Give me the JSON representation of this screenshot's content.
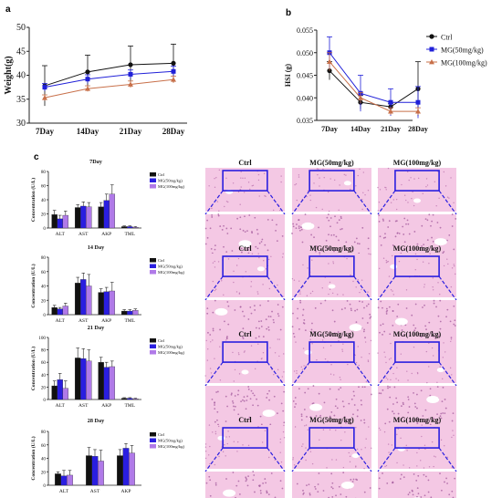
{
  "panel_labels": {
    "a": "a",
    "b": "b",
    "c": "c"
  },
  "colors": {
    "ctrl": "#111111",
    "mg50": "#2020d8",
    "mg100": "#c8704a",
    "mg100_bar": "#b07ae8",
    "mg50_bar": "#2a1ee0",
    "tissue_bg": "#f4c8e4",
    "tissue_vein": "#ffffff",
    "box": "#2a1ee0"
  },
  "histology": {
    "column_titles": [
      "Ctrl",
      "MG(50mg/kg)",
      "MG(100mg/kg)"
    ],
    "rows": 4
  },
  "chart_data": [
    {
      "type": "line",
      "id": "weight",
      "title": "",
      "xlabel": "",
      "ylabel": "Weight(g)",
      "categories": [
        "7Day",
        "14Day",
        "21Day",
        "28Day"
      ],
      "ylim": [
        30,
        50
      ],
      "yticks": [
        30,
        35,
        40,
        45,
        50
      ],
      "series": [
        {
          "name": "",
          "color_key": "ctrl",
          "marker": "circle",
          "values": [
            37.8,
            40.7,
            42.2,
            42.5
          ],
          "err": [
            4.2,
            3.5,
            3.9,
            4.0
          ]
        },
        {
          "name": "",
          "color_key": "mg50",
          "marker": "square",
          "values": [
            37.5,
            39.2,
            40.2,
            40.8
          ],
          "err": [
            0.8,
            0.9,
            0.9,
            1.1
          ]
        },
        {
          "name": "",
          "color_key": "mg100",
          "marker": "triangle",
          "values": [
            35.3,
            37.2,
            38.1,
            39.1
          ],
          "err": [
            0.6,
            0.6,
            0.7,
            0.7
          ]
        }
      ]
    },
    {
      "type": "line",
      "id": "hsi",
      "title": "",
      "xlabel": "",
      "ylabel": "HSI (g)",
      "categories": [
        "7Day",
        "14Day",
        "21Day",
        "28Day"
      ],
      "ylim": [
        0.035,
        0.055
      ],
      "yticks": [
        "0.035",
        "0.040",
        "0.045",
        "0.050",
        "0.055"
      ],
      "ytick_values": [
        0.035,
        0.04,
        0.045,
        0.05,
        0.055
      ],
      "legend_position": "right",
      "series": [
        {
          "name": "Ctrl",
          "color_key": "ctrl",
          "marker": "circle",
          "values": [
            0.046,
            0.039,
            0.038,
            0.042
          ],
          "err": [
            0.002,
            0.0015,
            0.0008,
            0.006
          ]
        },
        {
          "name": "MG(50mg/kg)",
          "color_key": "mg50",
          "marker": "square",
          "values": [
            0.05,
            0.041,
            0.039,
            0.039
          ],
          "err": [
            0.0035,
            0.004,
            0.003,
            0.0035
          ]
        },
        {
          "name": "MG(100mg/kg)",
          "color_key": "mg100",
          "marker": "triangle",
          "values": [
            0.048,
            0.04,
            0.037,
            0.037
          ],
          "err": [
            0.002,
            0.0012,
            0.0008,
            0.0008
          ]
        }
      ]
    },
    {
      "type": "bar",
      "id": "day7",
      "title": "7Day",
      "ylabel": "Concentration (U/L)",
      "categories": [
        "ALT",
        "AST",
        "AKP",
        "TML"
      ],
      "ylim": [
        0,
        80
      ],
      "yticks": [
        0,
        20,
        40,
        60,
        80
      ],
      "series": [
        {
          "name": "Ctrl",
          "color_key": "ctrl",
          "values": [
            19,
            29,
            30,
            2
          ],
          "err": [
            6,
            4,
            6,
            1
          ]
        },
        {
          "name": "MG(50mg/kg)",
          "color_key": "mg50_bar",
          "values": [
            13,
            31,
            39,
            2
          ],
          "err": [
            5,
            6,
            9,
            1
          ]
        },
        {
          "name": "MG(100mg/kg)",
          "color_key": "mg100_bar",
          "values": [
            18,
            30,
            48,
            1
          ],
          "err": [
            6,
            6,
            13,
            1
          ]
        }
      ]
    },
    {
      "type": "bar",
      "id": "day14",
      "title": "14 Day",
      "ylabel": "Concentration (U/L)",
      "categories": [
        "ALT",
        "AST",
        "AKP",
        "TML"
      ],
      "ylim": [
        0,
        80
      ],
      "yticks": [
        0,
        20,
        40,
        60,
        80
      ],
      "series": [
        {
          "name": "Ctrl",
          "color_key": "ctrl",
          "values": [
            10,
            44,
            31,
            5
          ],
          "err": [
            3,
            8,
            5,
            2
          ]
        },
        {
          "name": "MG(50mg/kg)",
          "color_key": "mg50_bar",
          "values": [
            8,
            49,
            32,
            5
          ],
          "err": [
            2,
            9,
            6,
            2
          ]
        },
        {
          "name": "MG(100mg/kg)",
          "color_key": "mg100_bar",
          "values": [
            12,
            40,
            33,
            6
          ],
          "err": [
            4,
            16,
            12,
            2
          ]
        }
      ]
    },
    {
      "type": "bar",
      "id": "day21",
      "title": "21 Day",
      "ylabel": "Concentration (U/L)",
      "categories": [
        "ALT",
        "AST",
        "AKP",
        "TML"
      ],
      "ylim": [
        0,
        100
      ],
      "yticks": [
        0,
        20,
        40,
        60,
        80,
        100
      ],
      "series": [
        {
          "name": "Ctrl",
          "color_key": "ctrl",
          "values": [
            22,
            67,
            60,
            2
          ],
          "err": [
            8,
            16,
            8,
            1
          ]
        },
        {
          "name": "MG(50mg/kg)",
          "color_key": "mg50_bar",
          "values": [
            32,
            66,
            52,
            2
          ],
          "err": [
            10,
            16,
            8,
            1
          ]
        },
        {
          "name": "MG(100mg/kg)",
          "color_key": "mg100_bar",
          "values": [
            18,
            62,
            53,
            1
          ],
          "err": [
            12,
            18,
            9,
            1
          ]
        }
      ]
    },
    {
      "type": "bar",
      "id": "day28",
      "title": "28 Day",
      "ylabel": "Concentration (U/L)",
      "categories": [
        "ALT",
        "AST",
        "AKP"
      ],
      "ylim": [
        0,
        80
      ],
      "yticks": [
        0,
        20,
        40,
        60,
        80
      ],
      "series": [
        {
          "name": "Ctrl",
          "color_key": "ctrl",
          "values": [
            17,
            44,
            44
          ],
          "err": [
            3,
            12,
            9
          ]
        },
        {
          "name": "MG(50mg/kg)",
          "color_key": "mg50_bar",
          "values": [
            14,
            43,
            55
          ],
          "err": [
            8,
            10,
            7
          ]
        },
        {
          "name": "MG(100mg/kg)",
          "color_key": "mg100_bar",
          "values": [
            15,
            36,
            48
          ],
          "err": [
            7,
            16,
            11
          ]
        }
      ]
    }
  ]
}
